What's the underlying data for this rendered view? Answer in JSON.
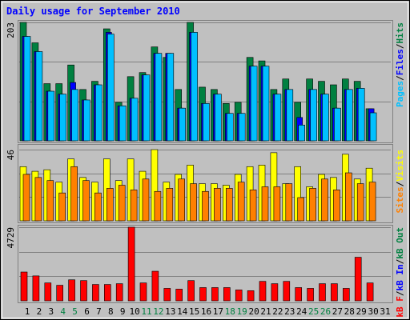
{
  "chart_data": [
    {
      "type": "bar",
      "title": "Daily usage for September 2010",
      "separator": "/",
      "ylim": [
        0,
        203
      ],
      "yticks": [
        203
      ],
      "series": [
        {
          "name": "Hits",
          "color": "#008040",
          "values": [
            203,
            168,
            98,
            98,
            130,
            88,
            102,
            192,
            66,
            110,
            117,
            161,
            143,
            88,
            203,
            92,
            88,
            64,
            66,
            143,
            137,
            88,
            106,
            66,
            106,
            102,
            96,
            106,
            102,
            55,
            0
          ]
        },
        {
          "name": "Files",
          "color": "#0000ff",
          "values": [
            179,
            153,
            85,
            80,
            100,
            70,
            96,
            186,
            60,
            73,
            113,
            150,
            150,
            56,
            186,
            64,
            80,
            47,
            47,
            128,
            128,
            80,
            88,
            40,
            88,
            80,
            56,
            88,
            90,
            55,
            0
          ]
        },
        {
          "name": "Pages",
          "color": "#00c0ff",
          "values": [
            179,
            153,
            85,
            80,
            88,
            70,
            96,
            183,
            60,
            73,
            113,
            150,
            150,
            56,
            186,
            64,
            80,
            47,
            47,
            128,
            128,
            80,
            88,
            27,
            88,
            80,
            56,
            88,
            90,
            48,
            0
          ]
        }
      ]
    },
    {
      "type": "bar",
      "separator": "/",
      "ylim": [
        0,
        46
      ],
      "yticks": [
        46
      ],
      "series": [
        {
          "name": "Visits",
          "color": "#ffff00",
          "values": [
            35,
            32,
            33,
            25,
            40,
            28,
            25,
            40,
            26,
            40,
            32,
            46,
            25,
            30,
            36,
            24,
            24,
            23,
            30,
            35,
            36,
            44,
            24,
            35,
            22,
            30,
            28,
            43,
            27,
            34,
            0
          ]
        },
        {
          "name": "Sites",
          "color": "#ff8000",
          "values": [
            30,
            28,
            26,
            18,
            35,
            26,
            18,
            21,
            23,
            20,
            27,
            19,
            21,
            27,
            24,
            19,
            21,
            21,
            25,
            20,
            22,
            22,
            24,
            15,
            21,
            27,
            20,
            31,
            24,
            25,
            0
          ]
        }
      ]
    },
    {
      "type": "bar",
      "separator": "/",
      "ylim": [
        0,
        4729
      ],
      "yticks": [
        4729
      ],
      "categories": [
        "1",
        "2",
        "3",
        "4",
        "5",
        "6",
        "7",
        "8",
        "9",
        "10",
        "11",
        "12",
        "13",
        "14",
        "15",
        "16",
        "17",
        "18",
        "19",
        "20",
        "21",
        "22",
        "23",
        "24",
        "25",
        "26",
        "27",
        "28",
        "29",
        "30",
        "31"
      ],
      "highlight": [
        3,
        4,
        10,
        11,
        17,
        18,
        24,
        25
      ],
      "highlight_color": "#008040",
      "series": [
        {
          "name": "kB F",
          "color": "#ff0000",
          "values": [
            1850,
            1600,
            1150,
            1000,
            1350,
            1300,
            1050,
            1050,
            1100,
            4729,
            1150,
            1900,
            800,
            750,
            1300,
            850,
            850,
            850,
            700,
            650,
            1250,
            1100,
            1250,
            850,
            800,
            1100,
            1100,
            800,
            2800,
            1150,
            0
          ]
        }
      ],
      "legend_extra": [
        {
          "name": "kB In",
          "color": "#0000ff"
        },
        {
          "name": "kB Out",
          "color": "#008040"
        }
      ]
    }
  ]
}
